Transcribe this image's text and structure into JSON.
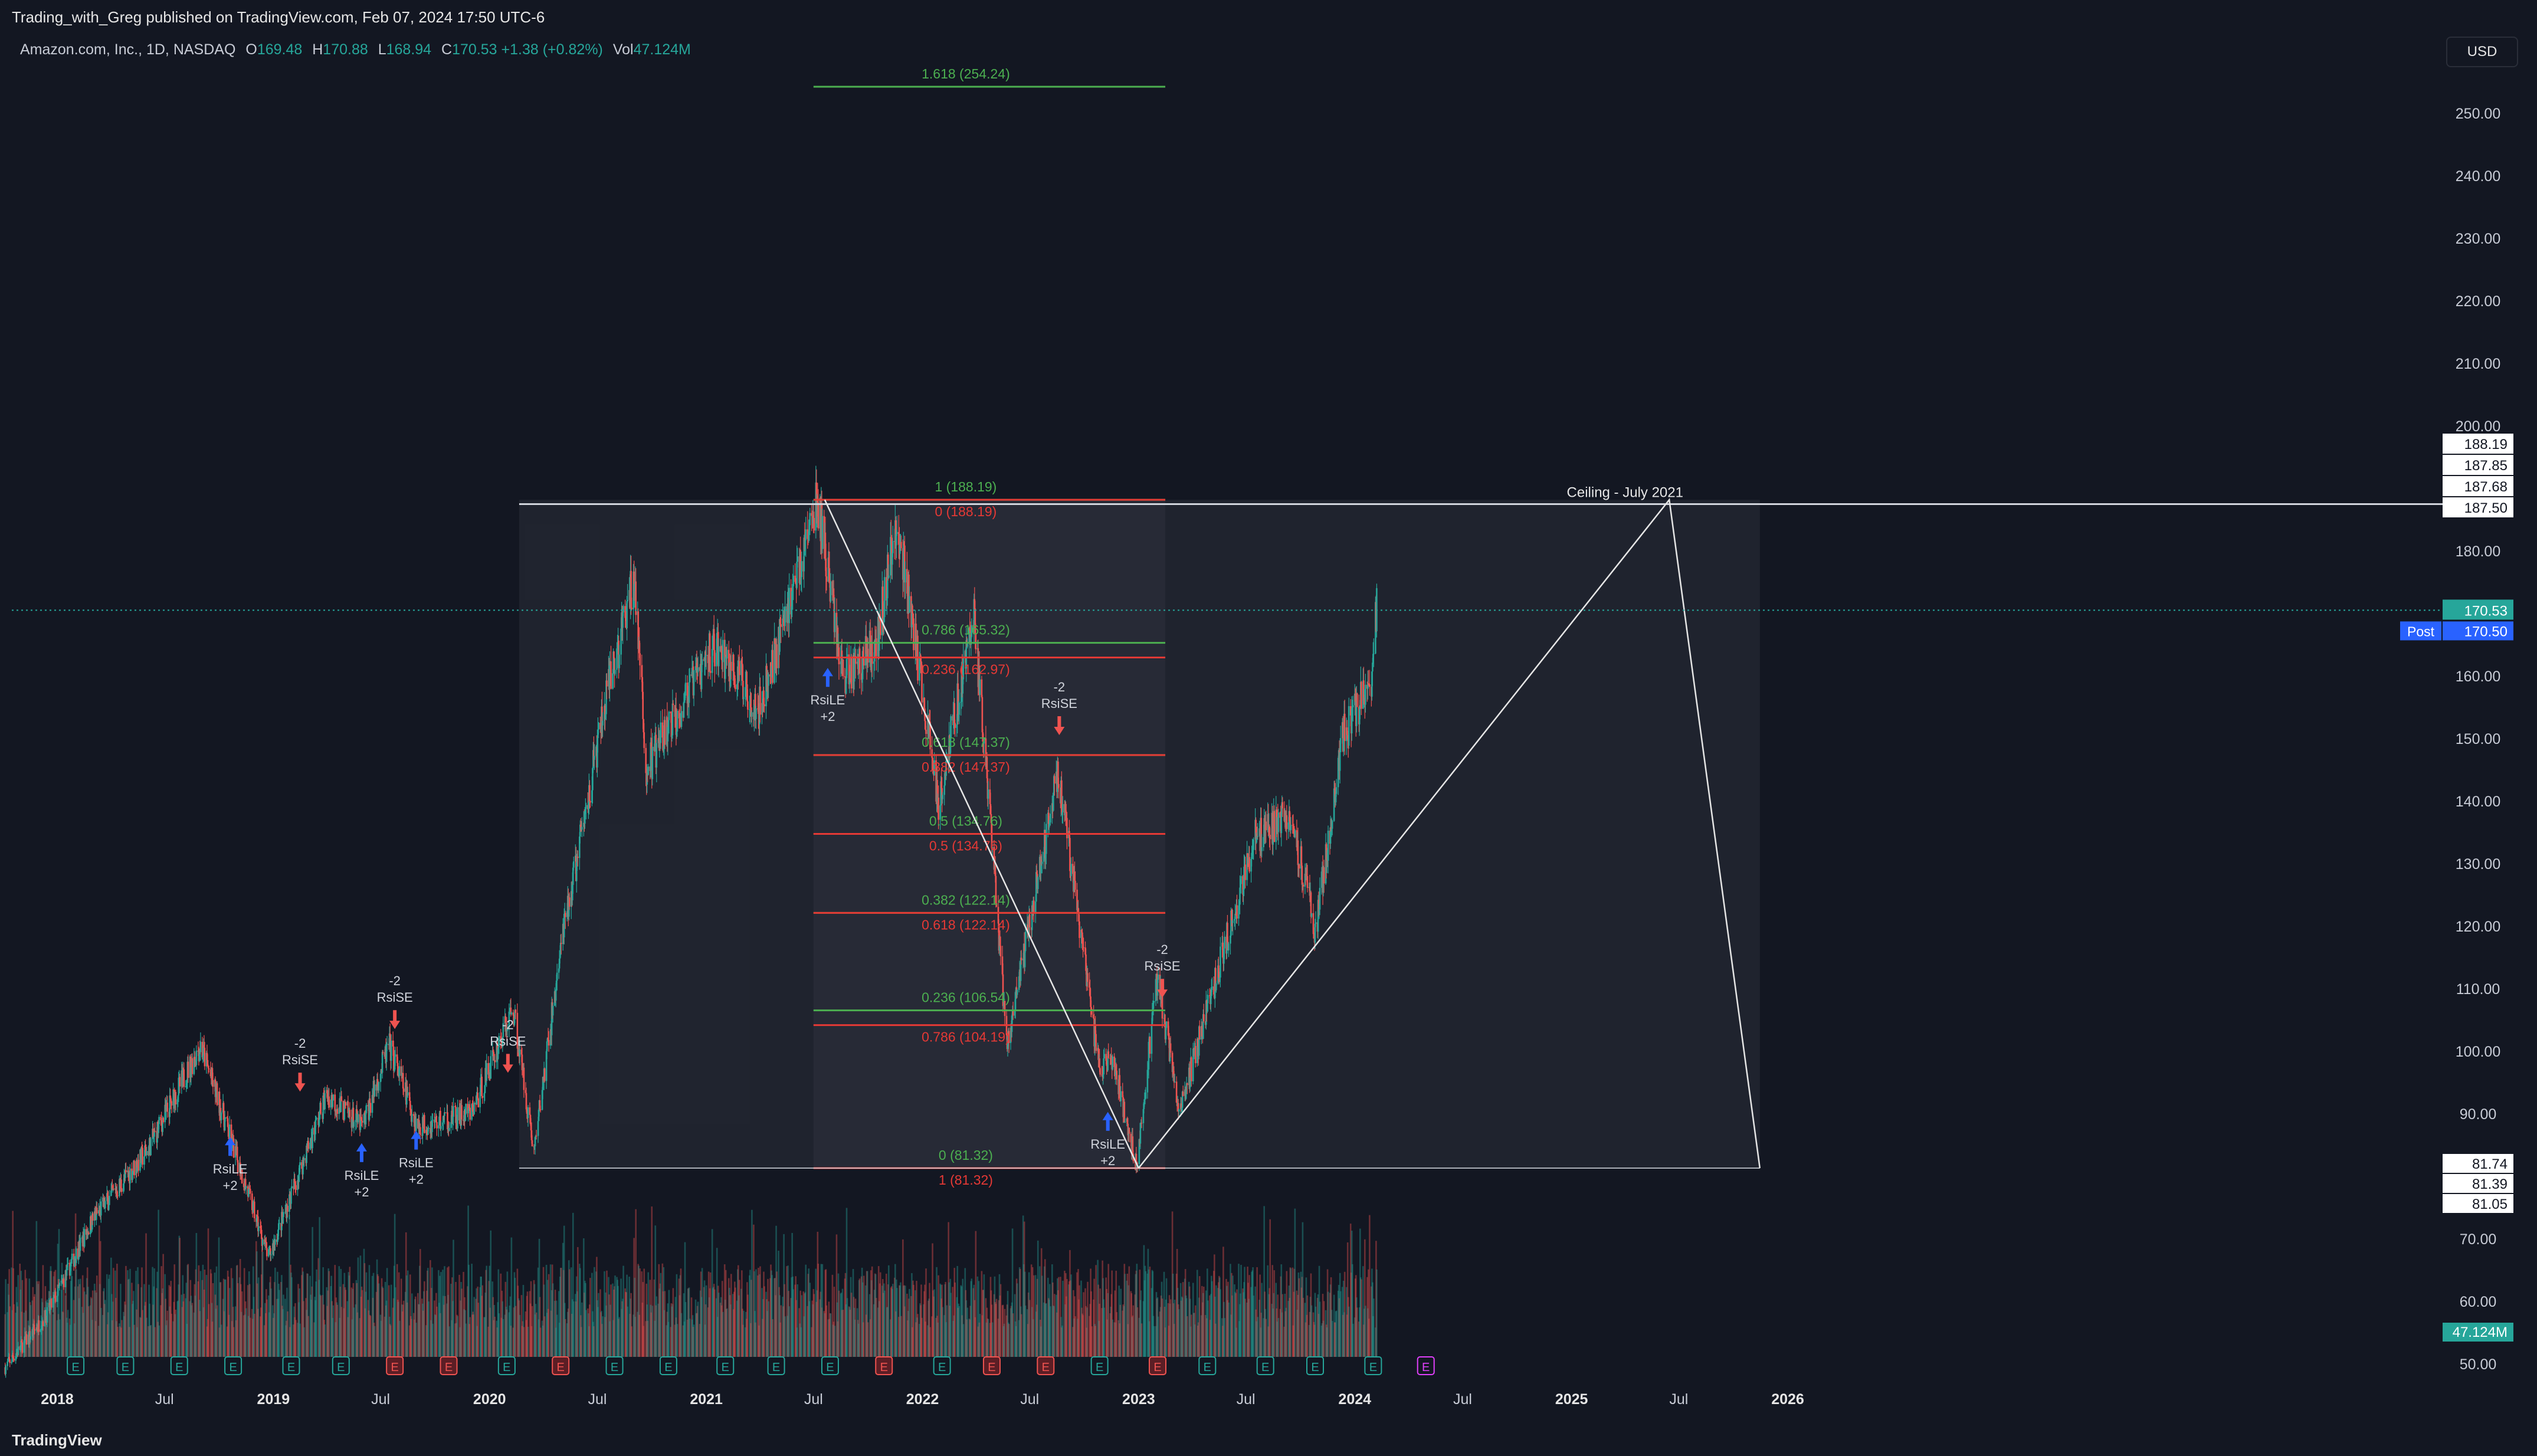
{
  "header": {
    "published": "Trading_with_Greg published on TradingView.com, Feb 07, 2024 17:50 UTC-6",
    "symbol": "Amazon.com, Inc., 1D, NASDAQ",
    "o_label": "O",
    "o": "169.48",
    "h_label": "H",
    "h": "170.88",
    "l_label": "L",
    "l": "168.94",
    "c_label": "C",
    "c": "170.53",
    "change": "+1.38 (+0.82%)",
    "vol_label": "Vol",
    "vol": "47.124M"
  },
  "currency": "USD",
  "footer": {
    "logo": "TradingView"
  },
  "colors": {
    "up": "#26a69a",
    "down": "#ef5350",
    "fib_green": "#4caf50",
    "fib_red": "#e53935",
    "accent": "#2962ff"
  },
  "chart_data": {
    "type": "candlestick",
    "title": "",
    "y_axis": {
      "range": [
        45,
        260
      ],
      "ticks": [
        "250.00",
        "240.00",
        "230.00",
        "220.00",
        "210.00",
        "200.00",
        "180.00",
        "160.00",
        "150.00",
        "140.00",
        "130.00",
        "120.00",
        "110.00",
        "100.00",
        "90.00",
        "70.00",
        "60.00",
        "50.00"
      ]
    },
    "x_axis": {
      "range": [
        "2017-10-01",
        "2026-08-01"
      ],
      "ticks": [
        {
          "label": "2018",
          "date": "2018-01-01",
          "bold": true
        },
        {
          "label": "Jul",
          "date": "2018-07-01",
          "bold": false
        },
        {
          "label": "2019",
          "date": "2019-01-01",
          "bold": true
        },
        {
          "label": "Jul",
          "date": "2019-07-01",
          "bold": false
        },
        {
          "label": "2020",
          "date": "2020-01-01",
          "bold": true
        },
        {
          "label": "Jul",
          "date": "2020-07-01",
          "bold": false
        },
        {
          "label": "2021",
          "date": "2021-01-01",
          "bold": true
        },
        {
          "label": "Jul",
          "date": "2021-07-01",
          "bold": false
        },
        {
          "label": "2022",
          "date": "2022-01-01",
          "bold": true
        },
        {
          "label": "Jul",
          "date": "2022-07-01",
          "bold": false
        },
        {
          "label": "2023",
          "date": "2023-01-01",
          "bold": true
        },
        {
          "label": "Jul",
          "date": "2023-07-01",
          "bold": false
        },
        {
          "label": "2024",
          "date": "2024-01-01",
          "bold": true
        },
        {
          "label": "Jul",
          "date": "2024-07-01",
          "bold": false
        },
        {
          "label": "2025",
          "date": "2025-01-01",
          "bold": true
        },
        {
          "label": "Jul",
          "date": "2025-07-01",
          "bold": false
        },
        {
          "label": "2026",
          "date": "2026-01-01",
          "bold": true
        }
      ]
    },
    "price_path": [
      [
        "2017-10-01",
        49
      ],
      [
        "2017-12-15",
        58
      ],
      [
        "2018-03-01",
        73
      ],
      [
        "2018-06-01",
        84
      ],
      [
        "2018-08-31",
        101
      ],
      [
        "2018-12-24",
        67
      ],
      [
        "2019-04-01",
        93
      ],
      [
        "2019-06-01",
        88
      ],
      [
        "2019-07-15",
        101
      ],
      [
        "2019-09-01",
        88
      ],
      [
        "2019-12-01",
        90
      ],
      [
        "2020-02-10",
        107
      ],
      [
        "2020-03-16",
        84
      ],
      [
        "2020-05-01",
        117
      ],
      [
        "2020-07-13",
        155
      ],
      [
        "2020-09-02",
        176
      ],
      [
        "2020-09-21",
        145
      ],
      [
        "2021-01-15",
        165
      ],
      [
        "2021-04-01",
        155
      ],
      [
        "2021-07-08",
        188
      ],
      [
        "2021-08-20",
        160
      ],
      [
        "2021-10-15",
        165
      ],
      [
        "2021-11-19",
        185
      ],
      [
        "2022-01-28",
        140
      ],
      [
        "2022-03-29",
        170
      ],
      [
        "2022-05-24",
        101
      ],
      [
        "2022-08-18",
        145
      ],
      [
        "2022-10-28",
        96
      ],
      [
        "2022-11-15",
        100
      ],
      [
        "2022-12-28",
        82
      ],
      [
        "2023-02-02",
        112
      ],
      [
        "2023-03-10",
        90
      ],
      [
        "2023-07-15",
        134
      ],
      [
        "2023-09-15",
        138
      ],
      [
        "2023-10-27",
        119
      ],
      [
        "2023-12-10",
        150
      ],
      [
        "2024-01-28",
        159
      ],
      [
        "2024-02-07",
        170.5
      ]
    ],
    "last_price": 170.53,
    "post_price": 170.5,
    "volume_last": "47.124M",
    "fib_levels": [
      {
        "ratio": "1.618",
        "price": 254.24,
        "label": "1.618 (254.24)",
        "color": "green"
      },
      {
        "ratio": "1",
        "price": 188.19,
        "label": "1 (188.19)",
        "color": "green"
      },
      {
        "ratio": "0",
        "price": 188.19,
        "label": "0 (188.19)",
        "color": "red"
      },
      {
        "ratio": "0.786",
        "price": 165.32,
        "label": "0.786 (165.32)",
        "color": "green"
      },
      {
        "ratio": "0.236",
        "price": 162.97,
        "label": "0.236 (162.97)",
        "color": "red"
      },
      {
        "ratio": "0.618",
        "price": 147.37,
        "label": "0.618 (147.37)",
        "color": "green"
      },
      {
        "ratio": "0.382",
        "price": 147.37,
        "label": "0.382 (147.37)",
        "color": "red"
      },
      {
        "ratio": "0.5",
        "price": 134.76,
        "label": "0.5 (134.76)",
        "color": "green"
      },
      {
        "ratio": "0.5",
        "price": 134.76,
        "label": "0.5 (134.76)",
        "color": "red"
      },
      {
        "ratio": "0.382",
        "price": 122.14,
        "label": "0.382 (122.14)",
        "color": "green"
      },
      {
        "ratio": "0.618",
        "price": 122.14,
        "label": "0.618 (122.14)",
        "color": "red"
      },
      {
        "ratio": "0.236",
        "price": 106.54,
        "label": "0.236 (106.54)",
        "color": "green"
      },
      {
        "ratio": "0.786",
        "price": 104.19,
        "label": "0.786 (104.19)",
        "color": "red"
      },
      {
        "ratio": "0",
        "price": 81.32,
        "label": "0 (81.32)",
        "color": "green"
      },
      {
        "ratio": "1",
        "price": 81.32,
        "label": "1 (81.32)",
        "color": "red"
      }
    ],
    "fib_range": [
      "2021-07-01",
      "2023-02-15"
    ],
    "ceiling": {
      "label": "Ceiling - July 2021",
      "price": 187.5
    },
    "range_box": {
      "from": "2020-02-20",
      "to": "2025-11-15",
      "top": 188.19,
      "bottom": 81.32
    },
    "triangle": [
      [
        "2023-01-01",
        81.32
      ],
      [
        "2025-06-15",
        188.19
      ],
      [
        "2025-11-15",
        81.32
      ]
    ],
    "trend_line": [
      [
        "2021-07-20",
        188.19
      ],
      [
        "2023-01-01",
        81.32
      ]
    ],
    "price_labels_right": [
      "188.19",
      "187.85",
      "187.68",
      "187.50",
      "81.74",
      "81.39",
      "81.05"
    ],
    "signals": [
      {
        "type": "RsiLE",
        "date": "2018-10-20",
        "price": 88,
        "text": [
          "RsiLE",
          "+2"
        ]
      },
      {
        "type": "RsiSE",
        "date": "2019-02-15",
        "price": 93,
        "text": [
          "-2",
          "RsiSE"
        ]
      },
      {
        "type": "RsiLE",
        "date": "2019-05-30",
        "price": 87,
        "text": [
          "RsiLE",
          "+2"
        ]
      },
      {
        "type": "RsiSE",
        "date": "2019-07-25",
        "price": 103,
        "text": [
          "-2",
          "RsiSE"
        ]
      },
      {
        "type": "RsiLE",
        "date": "2019-08-30",
        "price": 89,
        "text": [
          "RsiLE",
          "+2"
        ]
      },
      {
        "type": "RsiSE",
        "date": "2020-02-01",
        "price": 96,
        "text": [
          "-2",
          "RsiSE"
        ]
      },
      {
        "type": "RsiLE",
        "date": "2021-07-25",
        "price": 163,
        "text": [
          "RsiLE",
          "+2"
        ]
      },
      {
        "type": "RsiSE",
        "date": "2022-08-20",
        "price": 150,
        "text": [
          "-2",
          "RsiSE"
        ]
      },
      {
        "type": "RsiSE",
        "date": "2023-02-10",
        "price": 108,
        "text": [
          "-2",
          "RsiSE"
        ]
      },
      {
        "type": "RsiLE",
        "date": "2022-11-10",
        "price": 92,
        "text": [
          "RsiLE",
          "+2"
        ]
      }
    ],
    "earnings": [
      {
        "date": "2018-02-01",
        "kind": "up"
      },
      {
        "date": "2018-04-26",
        "kind": "up"
      },
      {
        "date": "2018-07-26",
        "kind": "up"
      },
      {
        "date": "2018-10-25",
        "kind": "up"
      },
      {
        "date": "2019-01-31",
        "kind": "up"
      },
      {
        "date": "2019-04-25",
        "kind": "up"
      },
      {
        "date": "2019-07-25",
        "kind": "down"
      },
      {
        "date": "2019-10-24",
        "kind": "down"
      },
      {
        "date": "2020-01-30",
        "kind": "up"
      },
      {
        "date": "2020-04-30",
        "kind": "down"
      },
      {
        "date": "2020-07-30",
        "kind": "up"
      },
      {
        "date": "2020-10-29",
        "kind": "up"
      },
      {
        "date": "2021-02-02",
        "kind": "up"
      },
      {
        "date": "2021-04-29",
        "kind": "up"
      },
      {
        "date": "2021-07-29",
        "kind": "up"
      },
      {
        "date": "2021-10-28",
        "kind": "down"
      },
      {
        "date": "2022-02-03",
        "kind": "up"
      },
      {
        "date": "2022-04-28",
        "kind": "down"
      },
      {
        "date": "2022-07-28",
        "kind": "down"
      },
      {
        "date": "2022-10-27",
        "kind": "up"
      },
      {
        "date": "2023-02-02",
        "kind": "down"
      },
      {
        "date": "2023-04-27",
        "kind": "up"
      },
      {
        "date": "2023-08-03",
        "kind": "up"
      },
      {
        "date": "2023-10-26",
        "kind": "up"
      },
      {
        "date": "2024-02-01",
        "kind": "up"
      },
      {
        "date": "2024-04-30",
        "kind": "future"
      }
    ],
    "earnings_letter": "E",
    "volume_label": "47.124M",
    "post_label": "Post"
  }
}
